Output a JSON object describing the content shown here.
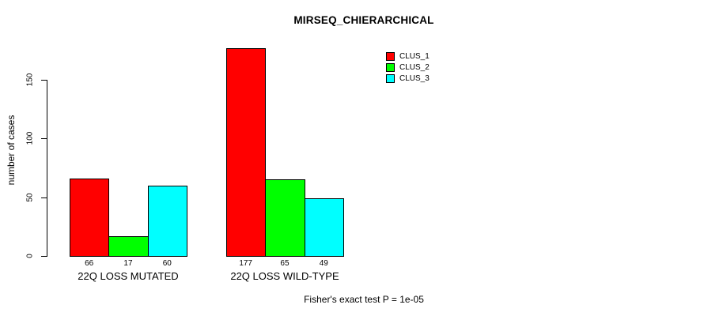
{
  "chart_data": {
    "type": "bar",
    "title": "MIRSEQ_CHIERARCHICAL",
    "xlabel": "",
    "ylabel": "number of cases",
    "categories": [
      "22Q LOSS MUTATED",
      "22Q LOSS WILD-TYPE"
    ],
    "series": [
      {
        "name": "CLUS_1",
        "color": "#FF0000",
        "values": [
          66,
          177
        ]
      },
      {
        "name": "CLUS_2",
        "color": "#00FF00",
        "values": [
          17,
          65
        ]
      },
      {
        "name": "CLUS_3",
        "color": "#00FFFF",
        "values": [
          60,
          49
        ]
      }
    ],
    "bar_value_labels": [
      [
        "66",
        "17",
        "60"
      ],
      [
        "177",
        "65",
        "49"
      ]
    ],
    "yticks": [
      0,
      50,
      100,
      150
    ],
    "ytick_labels": [
      "0",
      "50",
      "100",
      "150"
    ],
    "ylim": [
      0,
      185
    ],
    "grid": false,
    "legend_position": "top-right",
    "legend_entries": [
      "CLUS_1",
      "CLUS_2",
      "CLUS_3"
    ],
    "annotation": "Fisher's exact test P = 1e-05"
  },
  "colors": {
    "background": "#FFFFFF",
    "axis": "#000000",
    "text": "#000000",
    "clus_1": "#FF0000",
    "clus_2": "#00FF00",
    "clus_3": "#00FFFF"
  }
}
